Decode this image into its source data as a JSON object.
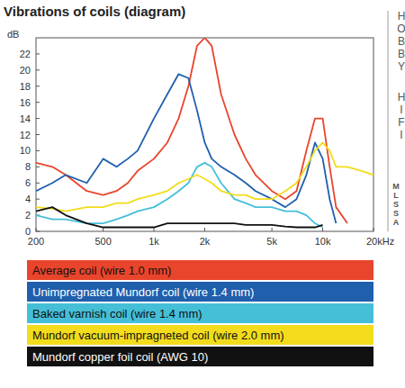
{
  "chart_data": {
    "type": "line",
    "title": "Vibrations of coils (diagram)",
    "y_label": "dB",
    "annotations": [
      "HOBBY",
      "HIFI",
      "MLSSA"
    ],
    "log": "x",
    "grid": false,
    "legend": "bottom",
    "x": [
      200,
      250,
      300,
      400,
      500,
      600,
      700,
      800,
      1000,
      1200,
      1400,
      1600,
      1800,
      2000,
      2200,
      2500,
      3000,
      3500,
      4000,
      5000,
      6000,
      7000,
      8000,
      9000,
      10000,
      11000,
      12000,
      14000,
      17000,
      20000
    ],
    "xlim": [
      200,
      20000
    ],
    "xticks": [
      200,
      500,
      {
        "value": 1000,
        "label": "1k"
      },
      {
        "value": 2000,
        "label": "2k"
      },
      {
        "value": 5000,
        "label": "5k"
      },
      {
        "value": 10000,
        "label": "10k"
      },
      {
        "value": 20000,
        "label": "20kHz"
      }
    ],
    "ylim": [
      0,
      24
    ],
    "yticks": [
      0,
      2,
      4,
      6,
      8,
      10,
      12,
      14,
      16,
      18,
      20,
      22
    ],
    "series": [
      {
        "name": "Average coil (wire 1.0 mm)",
        "color": "#e8452c",
        "values": [
          8.5,
          8,
          7,
          5,
          4.5,
          5,
          6,
          7.5,
          9,
          11,
          14,
          18,
          23,
          24,
          23,
          17,
          12,
          9,
          7,
          5,
          4,
          5,
          10,
          14,
          14,
          8,
          3,
          1,
          null,
          null
        ]
      },
      {
        "name": "Unimpregnated Mundorf coil (wire 1.4 mm)",
        "color": "#1f5fad",
        "values": [
          5,
          6,
          7,
          6,
          9,
          8,
          9,
          10,
          14,
          17,
          19.5,
          19,
          15,
          11,
          9,
          8,
          7,
          6,
          5,
          4,
          3,
          4,
          7,
          11,
          9,
          4,
          1,
          null,
          null,
          null
        ]
      },
      {
        "name": "Baked varnish coil (wire 1.4 mm)",
        "color": "#45bfd8",
        "values": [
          2,
          1.5,
          1.5,
          1,
          1,
          1.5,
          2,
          2.5,
          3,
          4,
          5,
          6,
          8,
          8.5,
          8,
          6,
          4,
          3.5,
          3,
          3,
          2.5,
          2.5,
          2,
          1,
          0.5,
          null,
          null,
          null,
          null,
          null
        ]
      },
      {
        "name": "Mundorf vacuum-impragneted coil (wire 2.0 mm)",
        "color": "#f2dc1c",
        "values": [
          3,
          2.8,
          2.5,
          3,
          3,
          3.5,
          3.5,
          4,
          4.5,
          5,
          6,
          6.5,
          7,
          6.5,
          6,
          5,
          4.5,
          4.5,
          4,
          4,
          5,
          6,
          8,
          10,
          11,
          10,
          8,
          8,
          7.5,
          7
        ]
      },
      {
        "name": "Mundorf copper foil coil (AWG 10)",
        "color": "#111111",
        "values": [
          2.5,
          3,
          2,
          1,
          0.5,
          0.5,
          0.5,
          0.5,
          0.5,
          1,
          1,
          1,
          1,
          1,
          1,
          1,
          1,
          0.8,
          0.8,
          0.8,
          0.6,
          0.5,
          0.5,
          0.5,
          0.8,
          null,
          null,
          null,
          null,
          null
        ]
      }
    ]
  }
}
